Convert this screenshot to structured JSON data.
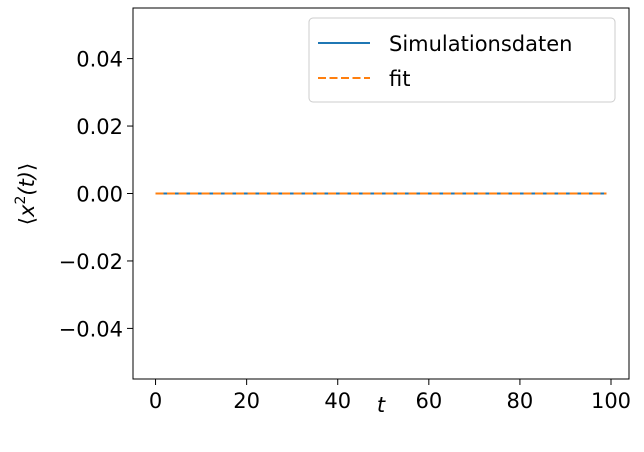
{
  "chart_data": {
    "type": "line",
    "title": "",
    "xlabel": "t",
    "ylabel_parts": {
      "open": "⟨",
      "var": "x",
      "sup": "2",
      "arg": "(t)",
      "close": "⟩"
    },
    "xlim": [
      -4.95,
      103.95
    ],
    "ylim": [
      -0.055,
      0.055
    ],
    "xticks": [
      0,
      20,
      40,
      60,
      80,
      100
    ],
    "xtick_labels": [
      "0",
      "20",
      "40",
      "60",
      "80",
      "100"
    ],
    "yticks": [
      0.04,
      0.02,
      0.0,
      -0.02,
      -0.04
    ],
    "ytick_labels": [
      "0.04",
      "0.02",
      "0.00",
      "−0.02",
      "−0.04"
    ],
    "grid": false,
    "legend_position": "top-right",
    "series": [
      {
        "name": "Simulationsdaten",
        "color": "#1f77b4",
        "style": "solid",
        "x": [
          0,
          99
        ],
        "y": [
          0,
          0
        ]
      },
      {
        "name": "fit",
        "color": "#ff7f0e",
        "style": "dashed",
        "x": [
          0,
          99
        ],
        "y": [
          0,
          0
        ]
      }
    ]
  }
}
